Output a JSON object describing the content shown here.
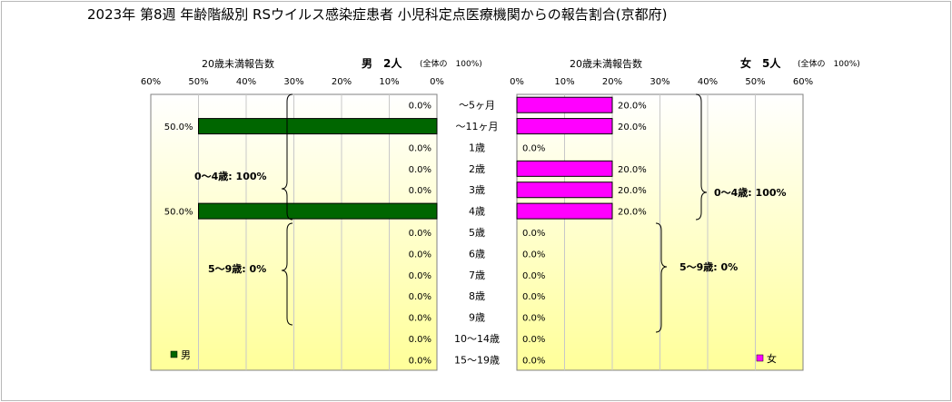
{
  "title": "2023年 第8週 年齢階級別 RSウイルス感染症患者 小児科定点医療機関からの報告割合(京都府)",
  "male_header": {
    "under20_label": "20歳未満報告数",
    "sex_count": "男　2人",
    "total_label": "(全体の　100%)"
  },
  "female_header": {
    "under20_label": "20歳未満報告数",
    "sex_count": "女　5人",
    "total_label": "(全体の　100%)"
  },
  "age_groups": [
    "～5ヶ月",
    "～11ヶ月",
    "1歳",
    "2歳",
    "3歳",
    "4歳",
    "5歳",
    "6歳",
    "7歳",
    "8歳",
    "9歳",
    "10～14歳",
    "15～19歳"
  ],
  "brackets": {
    "male_0_4": "0～4歳: 100%",
    "male_5_9": "5～9歳: 0%",
    "female_0_4": "0～4歳: 100%",
    "female_5_9": "5～9歳: 0%"
  },
  "colors": {
    "male": "#006600",
    "female": "#ff00ff",
    "plot_top": "#ffffff",
    "plot_bottom": "#ffff99"
  },
  "chart_data": [
    {
      "type": "bar",
      "orientation": "horizontal",
      "direction": "reversed",
      "categories": [
        "～5ヶ月",
        "～11ヶ月",
        "1歳",
        "2歳",
        "3歳",
        "4歳",
        "5歳",
        "6歳",
        "7歳",
        "8歳",
        "9歳",
        "10～14歳",
        "15～19歳"
      ],
      "series": [
        {
          "name": "男",
          "values": [
            0,
            50,
            0,
            0,
            0,
            50,
            0,
            0,
            0,
            0,
            0,
            0,
            0
          ]
        }
      ],
      "value_labels": [
        "0.0%",
        "50.0%",
        "0.0%",
        "0.0%",
        "0.0%",
        "50.0%",
        "0.0%",
        "0.0%",
        "0.0%",
        "0.0%",
        "0.0%",
        "0.0%",
        "0.0%"
      ],
      "xlim": [
        0,
        60
      ],
      "xticks": [
        "60%",
        "50%",
        "40%",
        "30%",
        "20%",
        "10%",
        "0%"
      ],
      "legend": "bottom-left"
    },
    {
      "type": "bar",
      "orientation": "horizontal",
      "categories": [
        "～5ヶ月",
        "～11ヶ月",
        "1歳",
        "2歳",
        "3歳",
        "4歳",
        "5歳",
        "6歳",
        "7歳",
        "8歳",
        "9歳",
        "10～14歳",
        "15～19歳"
      ],
      "series": [
        {
          "name": "女",
          "values": [
            20,
            20,
            0,
            20,
            20,
            20,
            0,
            0,
            0,
            0,
            0,
            0,
            0
          ]
        }
      ],
      "value_labels": [
        "20.0%",
        "20.0%",
        "0.0%",
        "20.0%",
        "20.0%",
        "20.0%",
        "0.0%",
        "0.0%",
        "0.0%",
        "0.0%",
        "0.0%",
        "0.0%",
        "0.0%"
      ],
      "xlim": [
        0,
        60
      ],
      "xticks": [
        "0%",
        "10%",
        "20%",
        "30%",
        "40%",
        "50%",
        "60%"
      ],
      "legend": "bottom-right"
    }
  ]
}
